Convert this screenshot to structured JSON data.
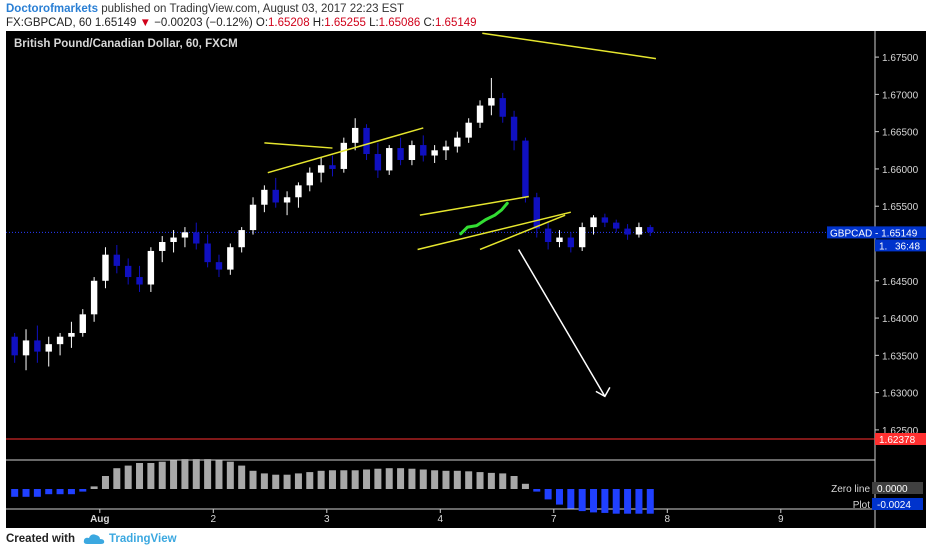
{
  "header": {
    "author": "Doctorofmarkets",
    "published": "published on TradingView.com, August 03, 2017 22:23 EST",
    "symbol_line": "FX:GBPCAD, 60  1.65149",
    "change": "−0.00203 (−0.12%)",
    "open_label": "O:",
    "open": "1.65208",
    "high_label": "H:",
    "high": "1.65255",
    "low_label": "L:",
    "low": "1.65086",
    "close_label": "C:",
    "close": "1.65149"
  },
  "chart_title": "British Pound/Canadian Dollar, 60, FXCM",
  "footer": {
    "created_with": "Created with",
    "brand": "TradingView"
  },
  "colors": {
    "background": "#000000",
    "candle_up": "#ffffff",
    "candle_down": "#1010c0",
    "trendline": "#e6e62e",
    "projection": "#33dd33",
    "arrow": "#ffffff",
    "price_tag": "#0033cc",
    "red_line": "#ff3030",
    "hist_positive": "#a8a8a8",
    "hist_negative": "#2040ff"
  },
  "chart_data": {
    "type": "candlestick",
    "symbol": "GBPCAD",
    "timeframe": "60",
    "ylim": [
      1.6215,
      1.6785
    ],
    "y_ticks": [
      "1.67500",
      "1.67000",
      "1.66500",
      "1.66000",
      "1.65500",
      "1.65000",
      "1.64500",
      "1.64000",
      "1.63500",
      "1.63000",
      "1.62500"
    ],
    "y_tick_values": [
      1.675,
      1.67,
      1.665,
      1.66,
      1.655,
      1.65,
      1.645,
      1.64,
      1.635,
      1.63,
      1.625
    ],
    "x_ticks": [
      "Aug",
      "2",
      "3",
      "4",
      "7",
      "8",
      "9"
    ],
    "x_tick_bars": [
      8,
      18,
      28,
      38,
      48,
      58,
      68
    ],
    "last_price": "1.65149",
    "last_price_label": "GBPCAD - 1.65149",
    "countdown": "36:48",
    "red_level": "1.62378",
    "red_level_value": 1.62378,
    "candles": [
      [
        1.6375,
        1.638,
        1.634,
        1.635
      ],
      [
        1.635,
        1.6385,
        1.633,
        1.637
      ],
      [
        1.637,
        1.639,
        1.634,
        1.6355
      ],
      [
        1.6355,
        1.6375,
        1.6335,
        1.6365
      ],
      [
        1.6365,
        1.638,
        1.635,
        1.6375
      ],
      [
        1.6375,
        1.6395,
        1.636,
        1.638
      ],
      [
        1.638,
        1.6412,
        1.6375,
        1.6405
      ],
      [
        1.6405,
        1.6455,
        1.6395,
        1.645
      ],
      [
        1.645,
        1.6495,
        1.644,
        1.6485
      ],
      [
        1.6485,
        1.6498,
        1.646,
        1.647
      ],
      [
        1.647,
        1.648,
        1.6445,
        1.6455
      ],
      [
        1.6455,
        1.647,
        1.6435,
        1.6445
      ],
      [
        1.6445,
        1.6495,
        1.6435,
        1.649
      ],
      [
        1.649,
        1.651,
        1.6475,
        1.6502
      ],
      [
        1.6502,
        1.6518,
        1.6488,
        1.6508
      ],
      [
        1.6508,
        1.6522,
        1.6495,
        1.6515
      ],
      [
        1.6515,
        1.6528,
        1.6492,
        1.65
      ],
      [
        1.65,
        1.6512,
        1.6468,
        1.6475
      ],
      [
        1.6475,
        1.6485,
        1.6455,
        1.6465
      ],
      [
        1.6465,
        1.65,
        1.6458,
        1.6495
      ],
      [
        1.6495,
        1.6522,
        1.6488,
        1.6518
      ],
      [
        1.6518,
        1.6562,
        1.6512,
        1.6552
      ],
      [
        1.6552,
        1.6578,
        1.6542,
        1.6572
      ],
      [
        1.6572,
        1.6588,
        1.6548,
        1.6555
      ],
      [
        1.6555,
        1.657,
        1.6538,
        1.6562
      ],
      [
        1.6562,
        1.6582,
        1.6548,
        1.6578
      ],
      [
        1.6578,
        1.6602,
        1.657,
        1.6595
      ],
      [
        1.6595,
        1.6615,
        1.6582,
        1.6605
      ],
      [
        1.6605,
        1.6618,
        1.659,
        1.66
      ],
      [
        1.66,
        1.6642,
        1.6595,
        1.6635
      ],
      [
        1.6635,
        1.6668,
        1.6625,
        1.6655
      ],
      [
        1.6655,
        1.666,
        1.6612,
        1.662
      ],
      [
        1.662,
        1.6635,
        1.6588,
        1.6598
      ],
      [
        1.6598,
        1.6632,
        1.6592,
        1.6628
      ],
      [
        1.6628,
        1.6642,
        1.6605,
        1.6612
      ],
      [
        1.6612,
        1.6638,
        1.6605,
        1.6632
      ],
      [
        1.6632,
        1.6645,
        1.661,
        1.6618
      ],
      [
        1.6618,
        1.6632,
        1.6608,
        1.6625
      ],
      [
        1.6625,
        1.6638,
        1.6612,
        1.663
      ],
      [
        1.663,
        1.665,
        1.6622,
        1.6642
      ],
      [
        1.6642,
        1.6668,
        1.6635,
        1.6662
      ],
      [
        1.6662,
        1.6692,
        1.6655,
        1.6685
      ],
      [
        1.6685,
        1.6722,
        1.6672,
        1.6695
      ],
      [
        1.6695,
        1.6702,
        1.6662,
        1.667
      ],
      [
        1.667,
        1.6678,
        1.6625,
        1.6638
      ],
      [
        1.6638,
        1.6642,
        1.6555,
        1.6562
      ],
      [
        1.6562,
        1.6568,
        1.6508,
        1.652
      ],
      [
        1.652,
        1.6528,
        1.6492,
        1.6502
      ],
      [
        1.6502,
        1.6518,
        1.6495,
        1.6508
      ],
      [
        1.6508,
        1.6515,
        1.6488,
        1.6495
      ],
      [
        1.6495,
        1.6528,
        1.649,
        1.6522
      ],
      [
        1.6522,
        1.6538,
        1.6512,
        1.6535
      ],
      [
        1.6535,
        1.654,
        1.6522,
        1.6528
      ],
      [
        1.6528,
        1.6532,
        1.6515,
        1.652
      ],
      [
        1.652,
        1.6526,
        1.6505,
        1.6512
      ],
      [
        1.6512,
        1.6528,
        1.6508,
        1.6522
      ],
      [
        1.6522,
        1.6525,
        1.651,
        1.6515
      ]
    ],
    "histogram": [
      -0.3,
      -0.3,
      -0.3,
      -0.2,
      -0.2,
      -0.2,
      -0.1,
      0.1,
      0.5,
      0.8,
      0.9,
      1.0,
      1.0,
      1.05,
      1.1,
      1.15,
      1.15,
      1.15,
      1.1,
      1.05,
      0.9,
      0.7,
      0.6,
      0.55,
      0.55,
      0.6,
      0.65,
      0.7,
      0.72,
      0.72,
      0.72,
      0.75,
      0.78,
      0.8,
      0.8,
      0.78,
      0.75,
      0.72,
      0.7,
      0.7,
      0.68,
      0.65,
      0.62,
      0.6,
      0.5,
      0.2,
      -0.1,
      -0.4,
      -0.6,
      -0.75,
      -0.85,
      -0.9,
      -0.92,
      -0.95,
      -0.95,
      -0.95,
      -0.95
    ],
    "indicator_labels": [
      {
        "name": "Zero line",
        "value": "0.0000"
      },
      {
        "name": "Plot",
        "value": "-0.0024"
      }
    ]
  }
}
